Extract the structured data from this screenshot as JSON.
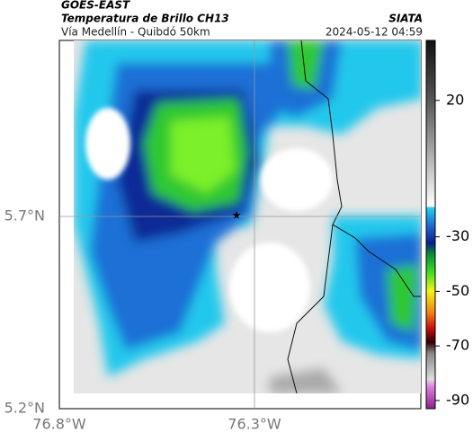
{
  "header": {
    "source": "GOES-EAST",
    "title": "Temperatura de Brillo CH13",
    "subtitle": "Vía Medellín - Quibdó 50km",
    "agency": "SIATA",
    "timestamp": "2024-05-12 04:59"
  },
  "map": {
    "lat_labels": [
      "5.7°N",
      "5.2°N"
    ],
    "lon_labels": [
      "76.8°W",
      "76.3°W"
    ]
  },
  "colorbar": {
    "range": [
      42,
      -93
    ],
    "ticks": [
      20,
      -30,
      -50,
      -70,
      -90
    ]
  }
}
